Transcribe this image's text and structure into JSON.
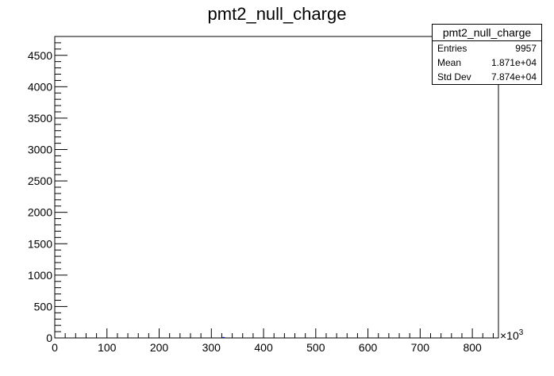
{
  "chart_data": {
    "type": "bar",
    "title": "pmt2_null_charge",
    "xlabel": "",
    "ylabel": "",
    "x_multiplier_label": "×10",
    "x_multiplier_exp": "3",
    "xlim": [
      0,
      850
    ],
    "ylim": [
      0,
      4800
    ],
    "x_ticks": [
      "0",
      "100",
      "200",
      "300",
      "400",
      "500",
      "600",
      "700",
      "800"
    ],
    "y_ticks": [
      "0",
      "500",
      "1000",
      "1500",
      "2000",
      "2500",
      "3000",
      "3500",
      "4000",
      "4500"
    ],
    "x_tick_values": [
      0,
      100,
      200,
      300,
      400,
      500,
      600,
      700,
      800
    ],
    "y_tick_values": [
      0,
      500,
      1000,
      1500,
      2000,
      2500,
      3000,
      3500,
      4000,
      4500
    ],
    "bars": [
      {
        "x": 323,
        "value": 15
      },
      {
        "x": 325,
        "value": 10
      }
    ],
    "grid": false,
    "legend": "top-right",
    "line_color": "#000099"
  },
  "stats_box": {
    "title": "pmt2_null_charge",
    "rows": [
      {
        "label": "Entries",
        "value": "9957"
      },
      {
        "label": "Mean",
        "value": "1.871e+04"
      },
      {
        "label": "Std Dev",
        "value": "7.874e+04"
      }
    ]
  }
}
